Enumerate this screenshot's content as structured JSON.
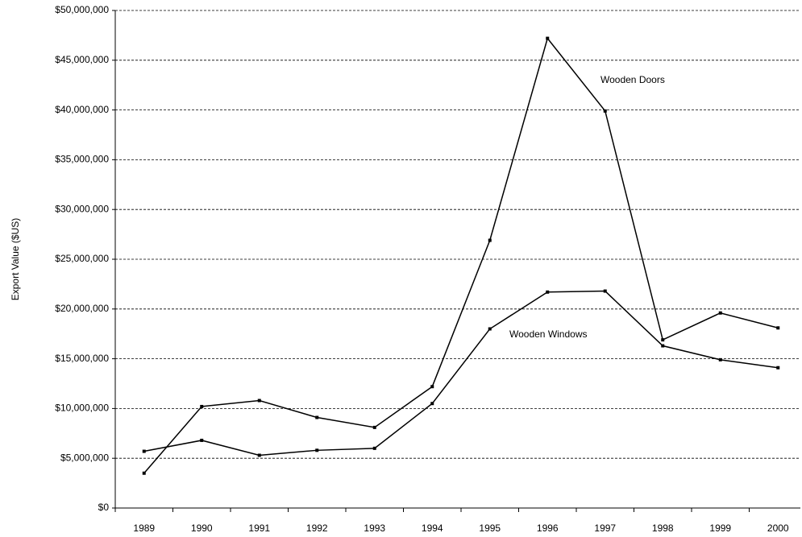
{
  "chart_data": {
    "type": "line",
    "y_label": "Export Value ($US)",
    "categories": [
      "1989",
      "1990",
      "1991",
      "1992",
      "1993",
      "1994",
      "1995",
      "1996",
      "1997",
      "1998",
      "1999",
      "2000"
    ],
    "series": [
      {
        "name": "Wooden Doors",
        "color": "#000000",
        "values": [
          3500000.0,
          10200000.0,
          10800000.0,
          9100000.0,
          8100000.0,
          12200000.0,
          26900000.0,
          47200000.0,
          39900000.0,
          16900000.0,
          19600000.0,
          18100000.0
        ]
      },
      {
        "name": "Wooden Windows",
        "color": "#000000",
        "values": [
          5700000.0,
          6800000.0,
          5300000.0,
          5800000.0,
          6000000.0,
          10500000.0,
          18000000.0,
          21700000.0,
          21800000.0,
          16300000.0,
          14900000.0,
          14100000.0
        ]
      }
    ],
    "ylim": [
      0,
      50000000
    ],
    "yticks": [
      {
        "value": 0,
        "label": "$0"
      },
      {
        "value": 5000000,
        "label": "$5,000,000"
      },
      {
        "value": 10000000,
        "label": "$10,000,000"
      },
      {
        "value": 15000000,
        "label": "$15,000,000"
      },
      {
        "value": 20000000,
        "label": "$20,000,000"
      },
      {
        "value": 25000000,
        "label": "$25,000,000"
      },
      {
        "value": 30000000,
        "label": "$30,000,000"
      },
      {
        "value": 35000000,
        "label": "$35,000,000"
      },
      {
        "value": 40000000,
        "label": "$40,000,000"
      },
      {
        "value": 45000000,
        "label": "$45,000,000"
      },
      {
        "value": 50000000,
        "label": "$50,000,000"
      }
    ],
    "grid": true
  }
}
